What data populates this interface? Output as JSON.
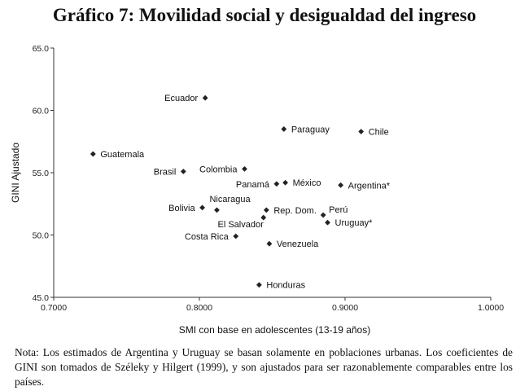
{
  "title": "Gráfico 7: Movilidad social y desigualdad del ingreso",
  "note": "Nota: Los estimados de Argentina y Uruguay se basan solamente en poblaciones urbanas. Los coeficientes de GINI son tomados de Széleky y Hilgert (1999), y son ajustados para ser razonablemente comparables entre los países.",
  "chart_data": {
    "type": "scatter",
    "title": "Gráfico 7: Movilidad social y desigualdad del ingreso",
    "xlabel": "SMI con base en adolescentes (13-19 años)",
    "ylabel": "GINI Ajustado",
    "xlim": [
      0.7,
      1.0
    ],
    "ylim": [
      45.0,
      65.0
    ],
    "xticks": [
      0.7,
      0.8,
      0.9,
      1.0
    ],
    "xtick_labels": [
      "0.7000",
      "0.8000",
      "0.9000",
      "1.0000"
    ],
    "yticks": [
      45.0,
      50.0,
      55.0,
      60.0,
      65.0
    ],
    "ytick_labels": [
      "45.0",
      "50.0",
      "55.0",
      "60.0",
      "65.0"
    ],
    "grid": false,
    "marker": "diamond",
    "points": [
      {
        "label": "Ecuador",
        "x": 0.804,
        "y": 61.0,
        "pos": "left"
      },
      {
        "label": "Paraguay",
        "x": 0.858,
        "y": 58.5,
        "pos": "right"
      },
      {
        "label": "Chile",
        "x": 0.911,
        "y": 58.3,
        "pos": "right"
      },
      {
        "label": "Guatemala",
        "x": 0.727,
        "y": 56.5,
        "pos": "right"
      },
      {
        "label": "Brasil",
        "x": 0.789,
        "y": 55.1,
        "pos": "left"
      },
      {
        "label": "Colombia",
        "x": 0.831,
        "y": 55.3,
        "pos": "left"
      },
      {
        "label": "Panamá",
        "x": 0.853,
        "y": 54.1,
        "pos": "left"
      },
      {
        "label": "México",
        "x": 0.859,
        "y": 54.2,
        "pos": "right"
      },
      {
        "label": "Argentina*",
        "x": 0.897,
        "y": 54.0,
        "pos": "right"
      },
      {
        "label": "Bolivia",
        "x": 0.802,
        "y": 52.2,
        "pos": "left"
      },
      {
        "label": "Nicaragua",
        "x": 0.812,
        "y": 52.0,
        "pos": "above"
      },
      {
        "label": "Rep. Dom.",
        "x": 0.846,
        "y": 52.0,
        "pos": "right"
      },
      {
        "label": "Perú",
        "x": 0.885,
        "y": 51.6,
        "pos": "right-above"
      },
      {
        "label": "El Salvador",
        "x": 0.844,
        "y": 51.4,
        "pos": "below-left"
      },
      {
        "label": "Uruguay*",
        "x": 0.888,
        "y": 51.0,
        "pos": "right"
      },
      {
        "label": "Costa Rica",
        "x": 0.825,
        "y": 49.9,
        "pos": "left"
      },
      {
        "label": "Venezuela",
        "x": 0.848,
        "y": 49.3,
        "pos": "right"
      },
      {
        "label": "Honduras",
        "x": 0.841,
        "y": 46.0,
        "pos": "right"
      }
    ]
  }
}
